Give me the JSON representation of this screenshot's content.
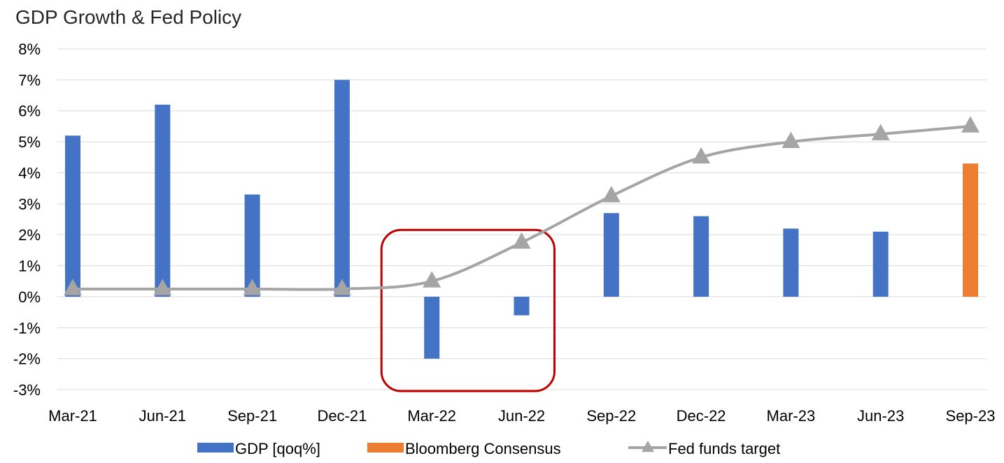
{
  "chart_data": {
    "type": "bar",
    "title": "GDP Growth & Fed Policy",
    "categories": [
      "Mar-21",
      "Jun-21",
      "Sep-21",
      "Dec-21",
      "Mar-22",
      "Jun-22",
      "Sep-22",
      "Dec-22",
      "Mar-23",
      "Jun-23",
      "Sep-23"
    ],
    "ylim": [
      -3,
      8
    ],
    "yticks": [
      "-3%",
      "-2%",
      "-1%",
      "0%",
      "1%",
      "2%",
      "3%",
      "4%",
      "5%",
      "6%",
      "7%",
      "8%"
    ],
    "grid": true,
    "legend_position": "bottom",
    "series": [
      {
        "name": "GDP [qoq%]",
        "kind": "bar",
        "color": "#4472c4",
        "values": [
          5.2,
          6.2,
          3.3,
          7.0,
          -2.0,
          -0.6,
          2.7,
          2.6,
          2.2,
          2.1,
          null
        ]
      },
      {
        "name": "Bloomberg Consensus",
        "kind": "bar",
        "color": "#ed7d31",
        "values": [
          null,
          null,
          null,
          null,
          null,
          null,
          null,
          null,
          null,
          null,
          4.3
        ]
      },
      {
        "name": "Fed funds target",
        "kind": "line",
        "marker": "triangle",
        "color": "#a5a5a5",
        "values": [
          0.25,
          0.25,
          0.25,
          0.25,
          0.5,
          1.75,
          3.25,
          4.5,
          5.0,
          5.25,
          5.5
        ]
      }
    ],
    "annotation": {
      "shape": "rounded-rectangle",
      "color": "#c00000",
      "from_category": "Mar-22",
      "to_category": "Jun-22",
      "y_range": [
        -3,
        2.2
      ]
    }
  }
}
